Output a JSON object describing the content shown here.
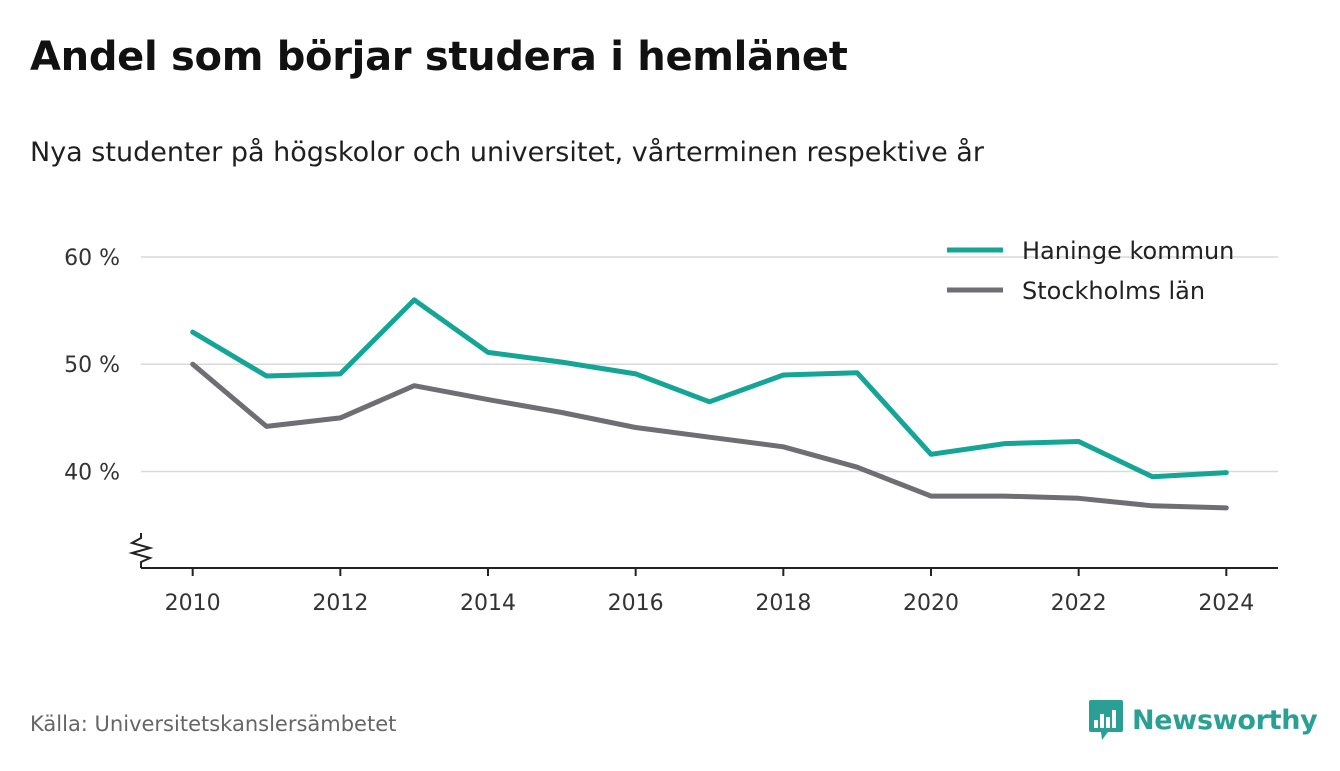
{
  "header": {
    "title": "Andel som börjar studera i hemlänet",
    "subtitle": "Nya studenter på högskolor och universitet, vårterminen respektive år"
  },
  "footer": {
    "source": "Källa: Universitetskanslersämbetet",
    "brand": "Newsworthy"
  },
  "colors": {
    "haninge": "#14a596",
    "stockholm": "#6e6e73",
    "grid": "#d9d9d9",
    "axis": "#222222",
    "brand": "#2aa095"
  },
  "chart_data": {
    "type": "line",
    "x": [
      2010,
      2011,
      2012,
      2013,
      2014,
      2015,
      2016,
      2017,
      2018,
      2019,
      2020,
      2021,
      2022,
      2023,
      2024
    ],
    "series": [
      {
        "name": "Haninge kommun",
        "color": "#14a596",
        "values": [
          53.0,
          48.9,
          49.1,
          56.0,
          51.1,
          50.2,
          49.1,
          46.5,
          49.0,
          49.2,
          41.6,
          42.6,
          42.8,
          39.5,
          39.9
        ]
      },
      {
        "name": "Stockholms län",
        "color": "#6e6e73",
        "values": [
          50.0,
          44.2,
          45.0,
          48.0,
          46.7,
          45.5,
          44.1,
          43.2,
          42.3,
          40.4,
          37.7,
          37.7,
          37.5,
          36.8,
          36.6
        ]
      }
    ],
    "xticks": [
      "2010",
      "2012",
      "2014",
      "2016",
      "2018",
      "2020",
      "2022",
      "2024"
    ],
    "yticks": [
      "40 %",
      "50 %",
      "60 %"
    ],
    "ytick_values": [
      40,
      50,
      60
    ],
    "ylim": [
      31,
      60
    ],
    "xlim": [
      2009.3,
      2024.7
    ],
    "grid": "horizontal",
    "axis_break": true,
    "legend_position": "top-right"
  }
}
